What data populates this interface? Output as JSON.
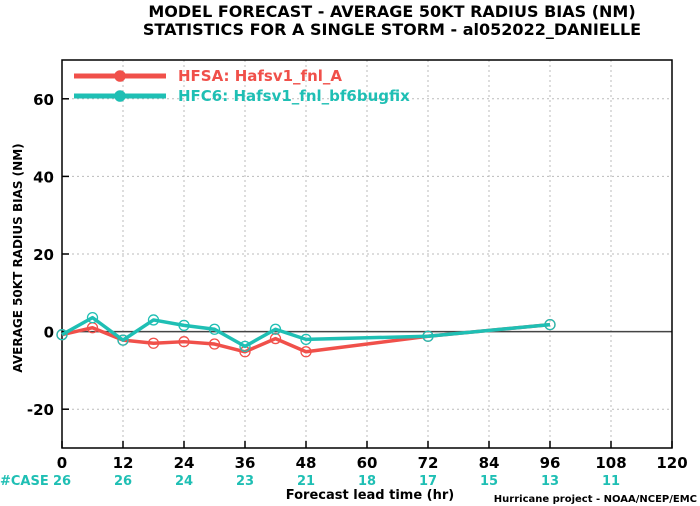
{
  "title_line1": "MODEL FORECAST - AVERAGE 50KT RADIUS BIAS (NM)",
  "title_line2": "STATISTICS FOR A SINGLE STORM - al052022_DANIELLE",
  "credit": "Hurricane project - NOAA/NCEP/EMC",
  "case_label": "#CASE",
  "colors": {
    "hfsa": "#f0504a",
    "hfc6": "#1fbfb4",
    "zero_line": "#444444",
    "grid": "#bbbbbb"
  },
  "chart_data": {
    "type": "line",
    "ylabel": "AVERAGE 50KT RADIUS BIAS (NM)",
    "xlabel": "Forecast lead time (hr)",
    "xlim": [
      0,
      120
    ],
    "ylim": [
      -30,
      70
    ],
    "x_ticks": [
      0,
      12,
      24,
      36,
      48,
      60,
      72,
      84,
      96,
      108,
      120
    ],
    "y_ticks": [
      -20,
      0,
      20,
      40,
      60
    ],
    "grid": true,
    "legend_position": "top-left",
    "series": [
      {
        "name": "HFSA: Hafsv1_fnl_A",
        "color": "#f0504a",
        "x": [
          0,
          6,
          12,
          18,
          24,
          30,
          36,
          42,
          48,
          72,
          96
        ],
        "y": [
          -0.8,
          1.0,
          -2.2,
          -3.0,
          -2.6,
          -3.2,
          -5.2,
          -1.8,
          -5.2,
          -1.2,
          1.8
        ]
      },
      {
        "name": "HFC6: Hafsv1_fnl_bf6bugfix",
        "color": "#1fbfb4",
        "x": [
          0,
          6,
          12,
          18,
          24,
          30,
          36,
          42,
          48,
          72,
          96
        ],
        "y": [
          -0.8,
          3.6,
          -2.2,
          3.0,
          1.6,
          0.6,
          -3.8,
          0.6,
          -2.0,
          -1.2,
          1.8
        ]
      }
    ],
    "case_counts": [
      {
        "x": 0,
        "text": "26"
      },
      {
        "x": 12,
        "text": "26"
      },
      {
        "x": 24,
        "text": "24"
      },
      {
        "x": 36,
        "text": "23"
      },
      {
        "x": 48,
        "text": "21"
      },
      {
        "x": 60,
        "text": "18"
      },
      {
        "x": 72,
        "text": "17"
      },
      {
        "x": 84,
        "text": "15"
      },
      {
        "x": 96,
        "text": "13"
      },
      {
        "x": 108,
        "text": "11"
      }
    ]
  }
}
